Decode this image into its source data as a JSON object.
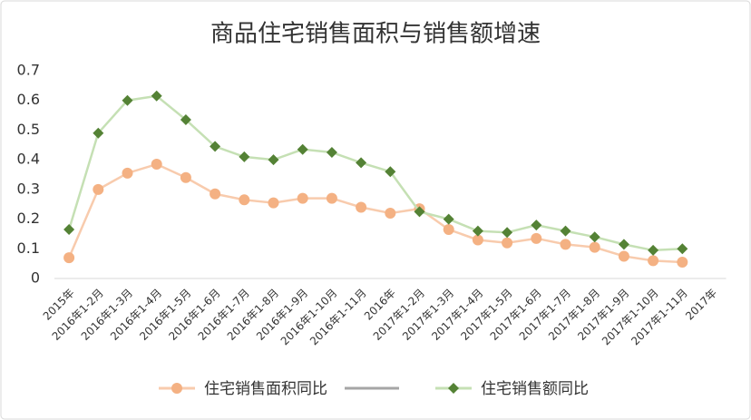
{
  "chart_data": {
    "type": "line",
    "title": "商品住宅销售面积与销售额增速",
    "categories": [
      "2015年",
      "2016年1-2月",
      "2016年1-3月",
      "2016年1-4月",
      "2016年1-5月",
      "2016年1-6月",
      "2016年1-7月",
      "2016年1-8月",
      "2016年1-9月",
      "2016年1-10月",
      "2016年1-11月",
      "2016年",
      "2017年1-2月",
      "2017年1-3月",
      "2017年1-4月",
      "2017年1-5月",
      "2017年1-6月",
      "2017年1-7月",
      "2017年1-8月",
      "2017年1-9月",
      "2017年1-10月",
      "2017年1-11月",
      "2017年"
    ],
    "series": [
      {
        "name": "住宅销售面积同比",
        "color": "#f4b183",
        "line_color": "#f8cbad",
        "marker": "circle",
        "values": [
          0.07,
          0.3,
          0.355,
          0.385,
          0.34,
          0.285,
          0.265,
          0.255,
          0.27,
          0.27,
          0.24,
          0.22,
          0.235,
          0.165,
          0.13,
          0.12,
          0.135,
          0.115,
          0.105,
          0.075,
          0.06,
          0.055,
          null
        ]
      },
      {
        "name": "住宅销售额同比",
        "color": "#548235",
        "line_color": "#c5e0b4",
        "marker": "diamond",
        "values": [
          0.165,
          0.49,
          0.6,
          0.615,
          0.535,
          0.445,
          0.41,
          0.4,
          0.435,
          0.425,
          0.39,
          0.36,
          0.225,
          0.2,
          0.16,
          0.155,
          0.18,
          0.16,
          0.14,
          0.115,
          0.095,
          0.1,
          null
        ]
      }
    ],
    "ylim": [
      0,
      0.7
    ],
    "yticks": [
      0,
      0.1,
      0.2,
      0.3,
      0.4,
      0.5,
      0.6,
      0.7
    ],
    "grid": false
  }
}
